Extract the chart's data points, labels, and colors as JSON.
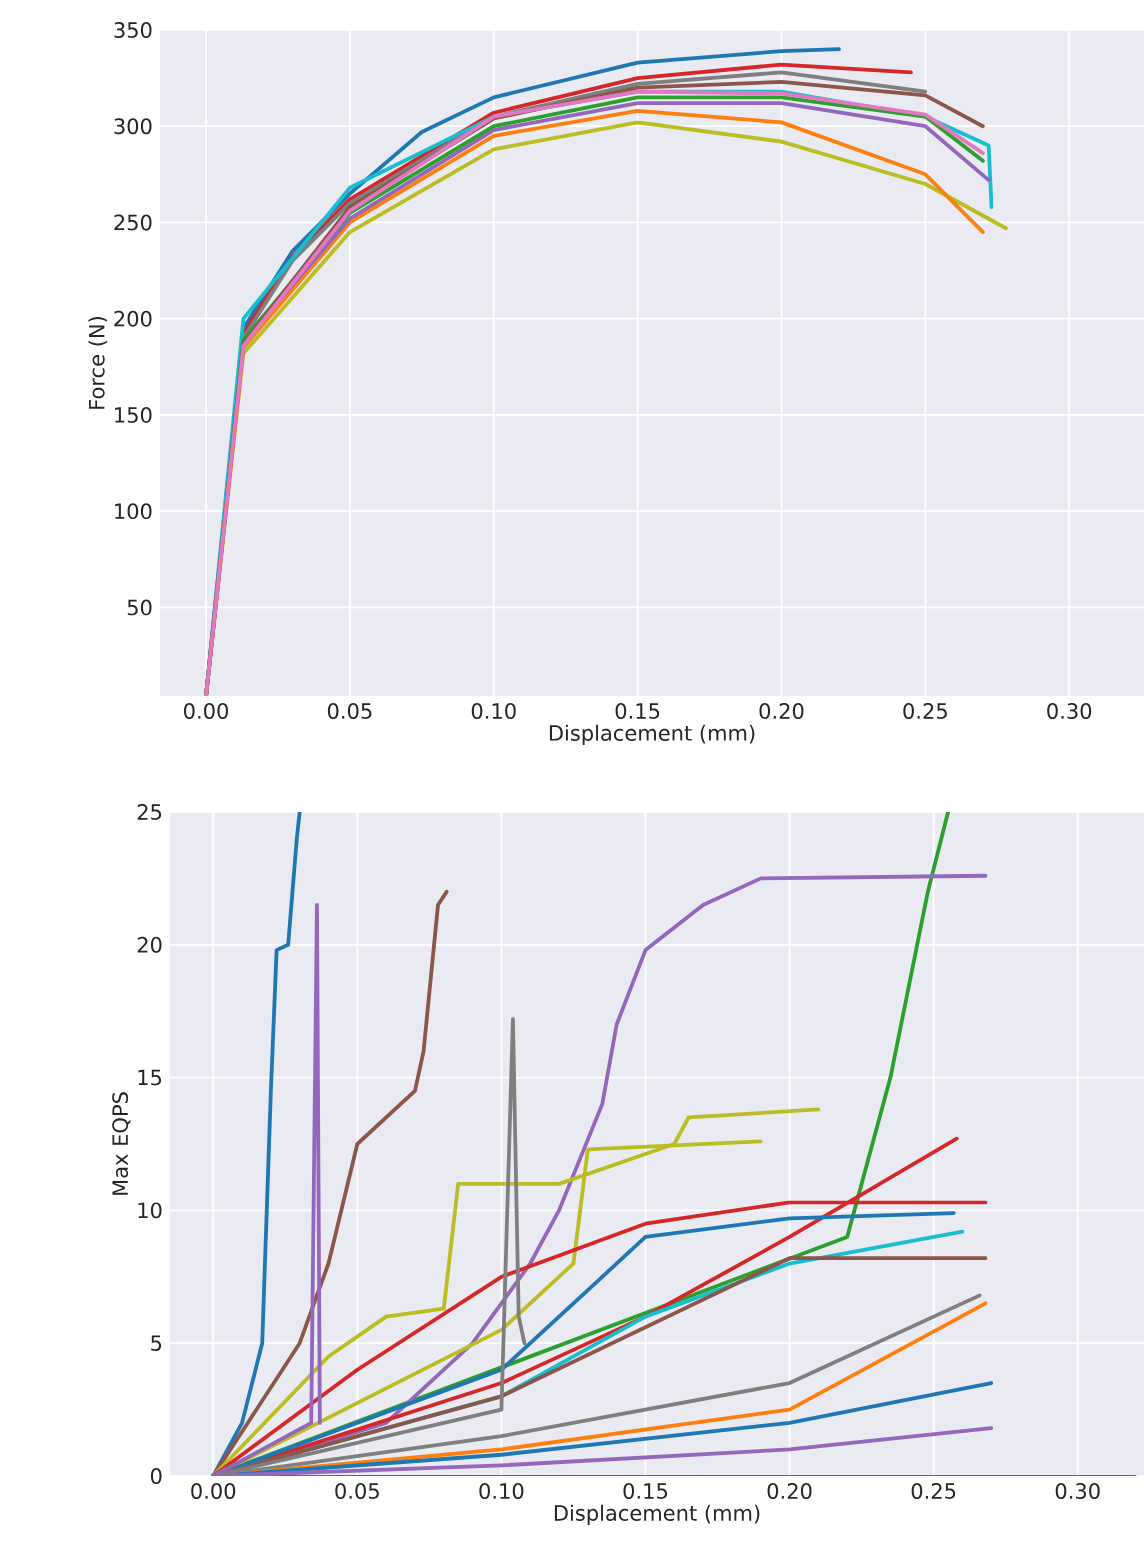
{
  "chart_data": [
    {
      "type": "line",
      "xlabel": "Displacement (mm)",
      "ylabel": "Force (N)",
      "xlim": [
        -0.016,
        0.326
      ],
      "ylim": [
        4,
        350
      ],
      "grid": true,
      "xticks": [
        {
          "value": 0,
          "label": "0.00"
        },
        {
          "value": 0.05,
          "label": "0.05"
        },
        {
          "value": 0.1,
          "label": "0.10"
        },
        {
          "value": 0.15,
          "label": "0.15"
        },
        {
          "value": 0.2,
          "label": "0.20"
        },
        {
          "value": 0.25,
          "label": "0.25"
        },
        {
          "value": 0.3,
          "label": "0.30"
        }
      ],
      "yticks": [
        50,
        100,
        150,
        200,
        250,
        300,
        350
      ],
      "series": [
        {
          "color": "#1f77b4",
          "x": [
            0,
            0.013,
            0.03,
            0.05,
            0.075,
            0.1,
            0.15,
            0.2,
            0.22
          ],
          "values": [
            4,
            195,
            235,
            265,
            297,
            315,
            333,
            339,
            340
          ]
        },
        {
          "color": "#d62728",
          "x": [
            0,
            0.013,
            0.03,
            0.05,
            0.1,
            0.15,
            0.2,
            0.245
          ],
          "values": [
            4,
            192,
            232,
            262,
            307,
            325,
            332,
            328
          ]
        },
        {
          "color": "#7f7f7f",
          "x": [
            0,
            0.013,
            0.03,
            0.05,
            0.1,
            0.15,
            0.2,
            0.25
          ],
          "values": [
            4,
            190,
            230,
            260,
            305,
            322,
            328,
            318
          ]
        },
        {
          "color": "#17becf",
          "x": [
            0,
            0.013,
            0.05,
            0.1,
            0.15,
            0.2,
            0.25,
            0.272,
            0.273
          ],
          "values": [
            4,
            200,
            268,
            305,
            318,
            318,
            305,
            290,
            258
          ]
        },
        {
          "color": "#bcbd22",
          "x": [
            0,
            0.013,
            0.05,
            0.1,
            0.15,
            0.2,
            0.25,
            0.278
          ],
          "values": [
            4,
            182,
            245,
            288,
            302,
            292,
            270,
            247
          ]
        },
        {
          "color": "#ff7f0e",
          "x": [
            0,
            0.013,
            0.05,
            0.1,
            0.15,
            0.2,
            0.25,
            0.27
          ],
          "values": [
            4,
            185,
            250,
            295,
            308,
            302,
            275,
            245
          ]
        },
        {
          "color": "#9467bd",
          "x": [
            0,
            0.013,
            0.05,
            0.1,
            0.15,
            0.2,
            0.25,
            0.272
          ],
          "values": [
            4,
            188,
            252,
            298,
            312,
            312,
            300,
            272
          ]
        },
        {
          "color": "#2ca02c",
          "x": [
            0,
            0.013,
            0.05,
            0.1,
            0.15,
            0.2,
            0.25,
            0.27
          ],
          "values": [
            4,
            189,
            255,
            300,
            315,
            315,
            305,
            282
          ]
        },
        {
          "color": "#8c564b",
          "x": [
            0,
            0.013,
            0.05,
            0.1,
            0.15,
            0.2,
            0.25,
            0.27
          ],
          "values": [
            4,
            187,
            258,
            304,
            320,
            323,
            316,
            300
          ]
        },
        {
          "color": "#e377c2",
          "x": [
            0,
            0.013,
            0.05,
            0.1,
            0.15,
            0.2,
            0.25,
            0.27
          ],
          "values": [
            4,
            186,
            256,
            305,
            318,
            317,
            306,
            286
          ]
        }
      ]
    },
    {
      "type": "line",
      "xlabel": "Displacement (mm)",
      "ylabel": "Max EQPS",
      "xlim": [
        -0.015,
        0.323
      ],
      "ylim": [
        0,
        25
      ],
      "grid": true,
      "xticks": [
        {
          "value": 0,
          "label": "0.00"
        },
        {
          "value": 0.05,
          "label": "0.05"
        },
        {
          "value": 0.1,
          "label": "0.10"
        },
        {
          "value": 0.15,
          "label": "0.15"
        },
        {
          "value": 0.2,
          "label": "0.20"
        },
        {
          "value": 0.25,
          "label": "0.25"
        },
        {
          "value": 0.3,
          "label": "0.30"
        }
      ],
      "yticks": [
        0,
        5,
        10,
        15,
        20,
        25
      ],
      "series": [
        {
          "color": "#1f77b4",
          "x": [
            0,
            0.32
          ],
          "values": [
            0,
            0
          ]
        },
        {
          "color": "#2ca02c",
          "x": [
            0,
            0.22,
            0.235,
            0.248,
            0.255
          ],
          "values": [
            0,
            9,
            15,
            22,
            25
          ]
        },
        {
          "color": "#9467bd",
          "x": [
            0,
            0.06,
            0.09,
            0.11,
            0.12,
            0.135,
            0.14,
            0.15,
            0.17,
            0.19,
            0.268
          ],
          "values": [
            0,
            2,
            5,
            8,
            10,
            14,
            17,
            19.8,
            21.5,
            22.5,
            22.6
          ]
        },
        {
          "color": "#1f77b4",
          "x": [
            0,
            0.01,
            0.017,
            0.02,
            0.022,
            0.026,
            0.029,
            0.03
          ],
          "values": [
            0,
            2,
            5,
            14.5,
            19.8,
            20,
            24,
            25
          ]
        },
        {
          "color": "#8c564b",
          "x": [
            0,
            0.03,
            0.04,
            0.05,
            0.06,
            0.07,
            0.073,
            0.078,
            0.081
          ],
          "values": [
            0,
            5,
            8,
            12.5,
            13.5,
            14.5,
            16,
            21.5,
            22
          ]
        },
        {
          "color": "#bcbd22",
          "x": [
            0,
            0.04,
            0.06,
            0.08,
            0.085,
            0.12,
            0.16,
            0.165,
            0.21
          ],
          "values": [
            0,
            4.5,
            6,
            6.3,
            11,
            11,
            12.5,
            13.5,
            13.8
          ]
        },
        {
          "color": "#bcbd22",
          "x": [
            0,
            0.1,
            0.125,
            0.13,
            0.19
          ],
          "values": [
            0,
            5.5,
            8,
            12.3,
            12.6
          ]
        },
        {
          "color": "#d62728",
          "x": [
            0,
            0.05,
            0.1,
            0.15,
            0.2,
            0.268
          ],
          "values": [
            0,
            4,
            7.5,
            9.5,
            10.3,
            10.3
          ]
        },
        {
          "color": "#d62728",
          "x": [
            0,
            0.1,
            0.15,
            0.2,
            0.258
          ],
          "values": [
            0,
            3.5,
            6,
            9,
            12.7
          ]
        },
        {
          "color": "#1f77b4",
          "x": [
            0,
            0.1,
            0.135,
            0.15,
            0.2,
            0.257
          ],
          "values": [
            0,
            4,
            7.5,
            9,
            9.7,
            9.9
          ]
        },
        {
          "color": "#17becf",
          "x": [
            0,
            0.1,
            0.15,
            0.2,
            0.26
          ],
          "values": [
            0,
            3,
            6,
            8,
            9.2
          ]
        },
        {
          "color": "#8c564b",
          "x": [
            0,
            0.1,
            0.2,
            0.268
          ],
          "values": [
            0,
            3,
            8.2,
            8.2
          ]
        },
        {
          "color": "#7f7f7f",
          "x": [
            0,
            0.1,
            0.2,
            0.266
          ],
          "values": [
            0,
            1.5,
            3.5,
            6.8
          ]
        },
        {
          "color": "#ff7f0e",
          "x": [
            0,
            0.1,
            0.2,
            0.268
          ],
          "values": [
            0,
            1,
            2.5,
            6.5
          ]
        },
        {
          "color": "#1f77b4",
          "x": [
            0,
            0.1,
            0.2,
            0.27
          ],
          "values": [
            0,
            0.8,
            2,
            3.5
          ]
        },
        {
          "color": "#9467bd",
          "x": [
            0,
            0.1,
            0.2,
            0.27
          ],
          "values": [
            0,
            0.4,
            1,
            1.8
          ]
        },
        {
          "color": "#7f7f7f",
          "x": [
            0,
            0.1,
            0.104,
            0.106,
            0.108
          ],
          "values": [
            0,
            2.5,
            17.2,
            6,
            5
          ]
        },
        {
          "color": "#9467bd",
          "x": [
            0,
            0.034,
            0.036,
            0.037
          ],
          "values": [
            0,
            2,
            21.5,
            2
          ]
        }
      ]
    }
  ]
}
